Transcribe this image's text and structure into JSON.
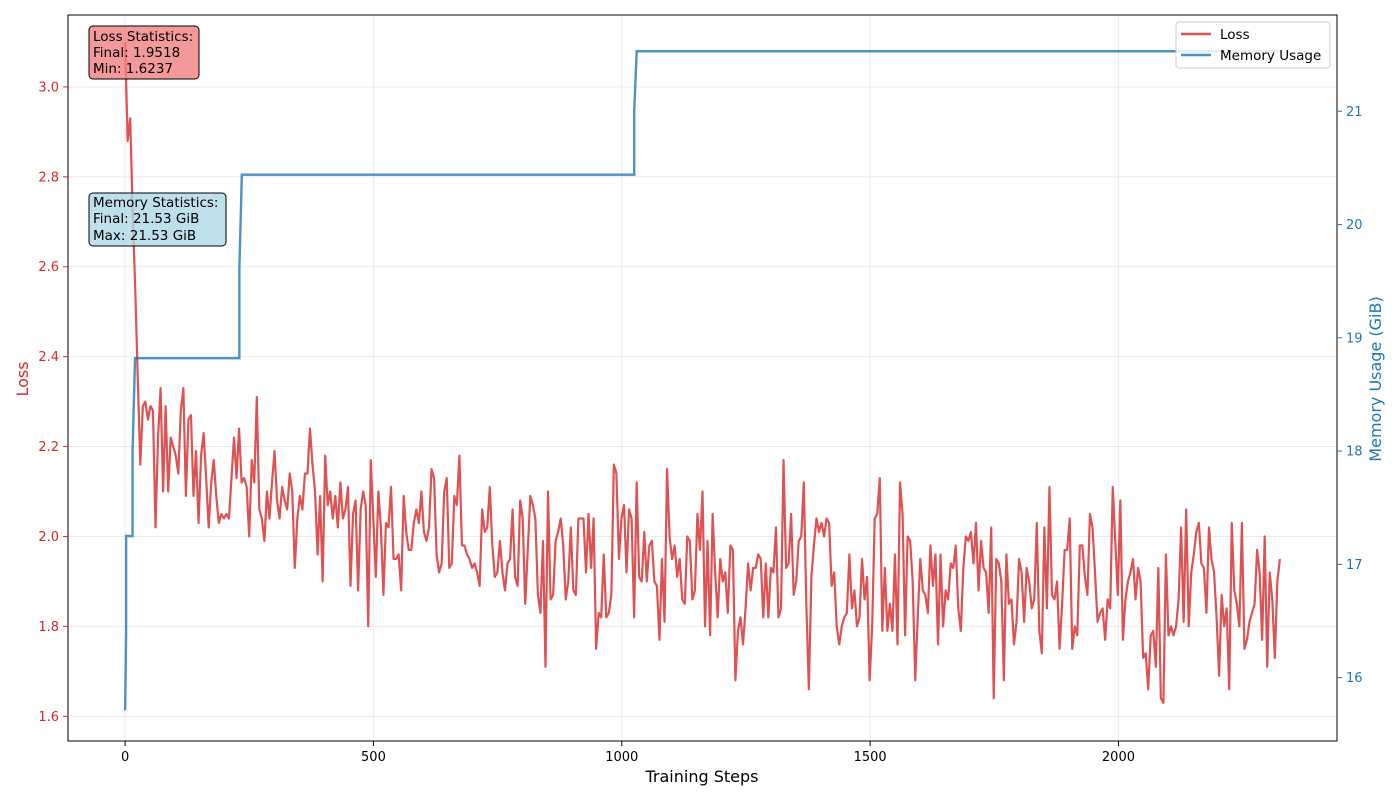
{
  "chart_data": {
    "type": "line",
    "xlabel": "Training Steps",
    "ylabel_left": "Loss",
    "ylabel_right": "Memory Usage (GiB)",
    "xlim": [
      -115,
      2440
    ],
    "ylim_left": [
      1.545,
      3.16
    ],
    "ylim_right": [
      15.44,
      21.85
    ],
    "x_ticks": [
      0,
      500,
      1000,
      1500,
      2000
    ],
    "y_ticks_left": [
      1.6,
      1.8,
      2.0,
      2.2,
      2.4,
      2.6,
      2.8,
      3.0
    ],
    "y_ticks_right": [
      16,
      17,
      18,
      19,
      20,
      21
    ],
    "grid": true,
    "legend_position": "top-right",
    "colors": {
      "loss": "#d62728",
      "memory": "#1f77b4",
      "loss_box": "#f08080",
      "memory_box": "#add8e6"
    },
    "series": [
      {
        "name": "Loss",
        "axis": "left",
        "x_start": 0,
        "x_end": 2325,
        "y": [
          3.1,
          2.88,
          2.93,
          2.72,
          2.55,
          2.35,
          2.16,
          2.29,
          2.3,
          2.26,
          2.29,
          2.28,
          2.02,
          2.22,
          2.33,
          2.1,
          2.29,
          2.1,
          2.22,
          2.2,
          2.18,
          2.14,
          2.28,
          2.33,
          2.09,
          2.26,
          2.27,
          2.09,
          2.19,
          2.03,
          2.18,
          2.23,
          2.13,
          2.02,
          2.12,
          2.17,
          2.09,
          2.03,
          2.05,
          2.04,
          2.05,
          2.04,
          2.13,
          2.22,
          2.13,
          2.24,
          2.12,
          2.13,
          2.11,
          2.0,
          2.17,
          2.12,
          2.31,
          2.06,
          2.04,
          1.99,
          2.1,
          2.04,
          2.12,
          2.19,
          2.08,
          2.04,
          2.11,
          2.08,
          2.06,
          2.14,
          2.1,
          1.93,
          2.04,
          2.09,
          2.06,
          2.14,
          2.14,
          2.24,
          2.16,
          2.1,
          1.96,
          2.09,
          1.9,
          2.18,
          2.07,
          2.1,
          2.04,
          2.09,
          2.02,
          2.12,
          2.04,
          2.06,
          2.11,
          1.89,
          2.05,
          2.08,
          1.88,
          2.06,
          2.1,
          2.07,
          1.8,
          2.17,
          2.04,
          1.91,
          2.1,
          2.02,
          1.87,
          2.03,
          2.02,
          2.11,
          1.95,
          1.95,
          1.96,
          1.88,
          2.09,
          2.01,
          1.97,
          1.97,
          2.03,
          2.06,
          2.03,
          2.1,
          2.01,
          1.99,
          2.02,
          2.15,
          2.13,
          1.96,
          1.92,
          1.94,
          2.1,
          2.13,
          1.93,
          1.94,
          2.09,
          2.07,
          2.18,
          1.98,
          1.98,
          1.96,
          1.95,
          1.93,
          1.94,
          1.92,
          1.89,
          2.06,
          2.01,
          2.02,
          2.11,
          1.98,
          1.91,
          1.92,
          1.99,
          1.92,
          1.88,
          1.94,
          1.95,
          2.06,
          1.91,
          1.89,
          2.08,
          2.04,
          1.85,
          1.97,
          2.09,
          2.07,
          2.04,
          1.87,
          1.83,
          1.99,
          1.71,
          2.1,
          1.86,
          1.87,
          1.99,
          2.01,
          2.04,
          1.98,
          1.86,
          1.9,
          2.02,
          1.88,
          1.87,
          2.04,
          2.04,
          2.04,
          1.92,
          2.05,
          1.93,
          2.04,
          1.75,
          1.83,
          1.82,
          1.96,
          1.82,
          1.83,
          1.87,
          2.16,
          2.14,
          1.95,
          2.04,
          2.07,
          1.92,
          2.06,
          2.04,
          1.82,
          2.12,
          1.91,
          1.9,
          2.01,
          1.9,
          1.98,
          1.99,
          1.9,
          1.89,
          1.77,
          1.95,
          1.81,
          2.15,
          2.0,
          1.95,
          1.98,
          1.91,
          1.95,
          1.86,
          1.85,
          2.0,
          1.99,
          1.86,
          1.88,
          2.05,
          1.97,
          2.1,
          1.8,
          1.99,
          1.78,
          2.05,
          1.92,
          1.82,
          1.95,
          1.9,
          1.92,
          1.83,
          1.98,
          1.97,
          1.68,
          1.79,
          1.82,
          1.76,
          1.84,
          1.94,
          1.88,
          1.93,
          1.93,
          1.96,
          1.95,
          1.82,
          1.94,
          1.82,
          1.93,
          1.92,
          2.02,
          1.82,
          1.84,
          2.17,
          1.93,
          1.94,
          2.05,
          1.87,
          1.9,
          1.99,
          2.0,
          2.12,
          1.85,
          1.66,
          1.91,
          1.98,
          2.04,
          2.01,
          2.03,
          2.0,
          2.04,
          2.03,
          1.89,
          1.92,
          1.8,
          1.76,
          1.8,
          1.82,
          1.83,
          1.96,
          1.84,
          1.88,
          1.8,
          1.82,
          1.95,
          1.86,
          1.91,
          1.68,
          1.8,
          2.04,
          2.05,
          2.13,
          1.79,
          1.93,
          1.79,
          1.85,
          1.79,
          1.96,
          1.76,
          2.12,
          2.05,
          1.78,
          2.0,
          1.99,
          1.9,
          1.68,
          1.82,
          1.95,
          1.88,
          1.87,
          1.83,
          1.98,
          1.89,
          1.96,
          1.76,
          1.96,
          1.8,
          1.88,
          1.86,
          1.94,
          1.93,
          1.98,
          1.84,
          1.79,
          1.93,
          2.0,
          1.99,
          2.01,
          1.94,
          2.03,
          1.88,
          1.99,
          1.93,
          1.92,
          1.83,
          2.02,
          1.64,
          1.95,
          1.94,
          1.9,
          1.68,
          1.96,
          1.85,
          1.86,
          1.76,
          1.81,
          1.95,
          1.92,
          1.81,
          1.93,
          1.9,
          1.84,
          1.86,
          2.03,
          1.79,
          1.74,
          2.02,
          1.84,
          2.11,
          1.87,
          1.86,
          1.9,
          1.75,
          1.85,
          1.97,
          1.97,
          2.04,
          1.75,
          1.8,
          1.78,
          1.98,
          1.98,
          1.91,
          1.87,
          2.05,
          2.02,
          1.92,
          1.81,
          1.83,
          1.84,
          1.77,
          1.86,
          1.84,
          2.11,
          1.99,
          1.87,
          2.08,
          1.77,
          1.86,
          1.9,
          1.92,
          1.95,
          1.86,
          1.93,
          1.9,
          1.73,
          1.74,
          1.66,
          1.78,
          1.79,
          1.71,
          1.93,
          1.64,
          1.63,
          1.96,
          1.78,
          1.8,
          1.78,
          1.8,
          1.86,
          2.02,
          1.81,
          2.06,
          1.8,
          1.92,
          1.96,
          2.01,
          2.03,
          1.94,
          1.93,
          1.83,
          2.02,
          1.95,
          1.92,
          1.82,
          1.69,
          1.87,
          1.8,
          1.84,
          1.66,
          2.03,
          1.88,
          1.85,
          1.8,
          2.03,
          1.75,
          1.77,
          1.81,
          1.83,
          1.85,
          1.97,
          1.92,
          1.77,
          2.0,
          1.71,
          1.92,
          1.86,
          1.73,
          1.9,
          1.95
        ]
      },
      {
        "name": "Memory Usage",
        "axis": "right",
        "x": [
          0,
          2,
          2,
          15,
          15,
          20,
          230,
          230,
          235,
          1025,
          1025,
          1030,
          2325
        ],
        "y": [
          15.71,
          16.4,
          17.25,
          17.25,
          18.0,
          18.82,
          18.82,
          19.6,
          20.44,
          20.44,
          21.0,
          21.53,
          21.53
        ]
      }
    ],
    "annotations": [
      {
        "name": "loss-stats",
        "lines": [
          "Loss Statistics:",
          "Final: 1.9518",
          "Min: 1.6237"
        ]
      },
      {
        "name": "memory-stats",
        "lines": [
          "Memory Statistics:",
          "Final: 21.53 GiB",
          "Max: 21.53 GiB"
        ]
      }
    ]
  }
}
